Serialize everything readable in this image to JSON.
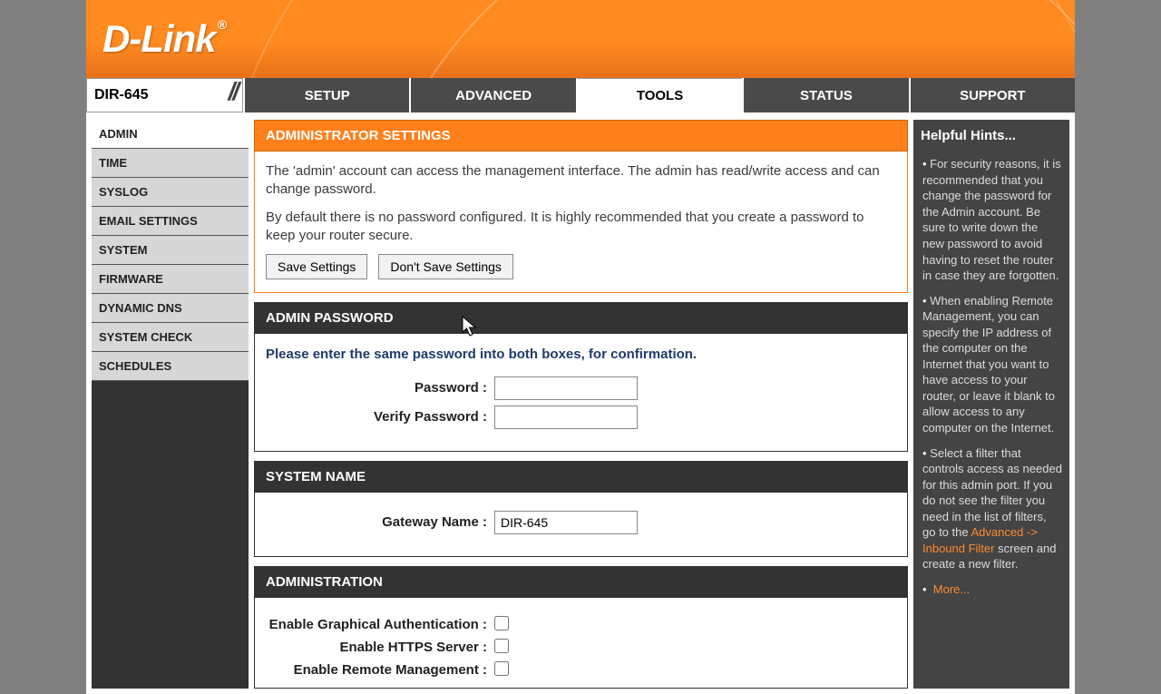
{
  "brand": "D-Link",
  "model": "DIR-645",
  "topnav": {
    "items": [
      "SETUP",
      "ADVANCED",
      "TOOLS",
      "STATUS",
      "SUPPORT"
    ],
    "active_index": 2
  },
  "sidebar": {
    "items": [
      "ADMIN",
      "TIME",
      "SYSLOG",
      "EMAIL SETTINGS",
      "SYSTEM",
      "FIRMWARE",
      "DYNAMIC DNS",
      "SYSTEM CHECK",
      "SCHEDULES"
    ],
    "active_index": 0
  },
  "page": {
    "title": "ADMINISTRATOR SETTINGS",
    "intro1": "The 'admin' account can access the management interface. The admin has read/write access and can change password.",
    "intro2": "By default there is no password configured. It is highly recommended that you create a password to keep your router secure.",
    "save_label": "Save Settings",
    "dont_save_label": "Don't Save Settings"
  },
  "sections": {
    "password": {
      "title": "ADMIN PASSWORD",
      "note": "Please enter the same password into both boxes, for confirmation.",
      "password_label": "Password :",
      "verify_label": "Verify Password :",
      "password_value": "",
      "verify_value": ""
    },
    "system_name": {
      "title": "SYSTEM NAME",
      "gateway_label": "Gateway Name :",
      "gateway_value": "DIR-645"
    },
    "administration": {
      "title": "ADMINISTRATION",
      "graphical_label": "Enable Graphical Authentication",
      "https_label": "Enable HTTPS Server :",
      "remote_label": "Enable Remote Management :"
    }
  },
  "hints": {
    "title": "Helpful Hints...",
    "h1": "For security reasons, it is recommended that you change the password for the Admin account. Be sure to write down the new password to avoid having to reset the router in case they are forgotten.",
    "h2": "When enabling Remote Management, you can specify the IP address of the computer on the Internet that you want to have access to your router, or leave it blank to allow access to any computer on the Internet.",
    "h3a": "Select a filter that controls access as needed for this admin port. If you do not see the filter you need in the list of filters, go to the ",
    "h3link": "Advanced -> Inbound Filter",
    "h3b": " screen and create a new filter.",
    "more": "More..."
  },
  "colors": {
    "orange": "#ff7f1a",
    "dark": "#333333",
    "nav": "#4a4a4a",
    "body_bg": "#808080",
    "accent_link": "#ff8a2a"
  }
}
